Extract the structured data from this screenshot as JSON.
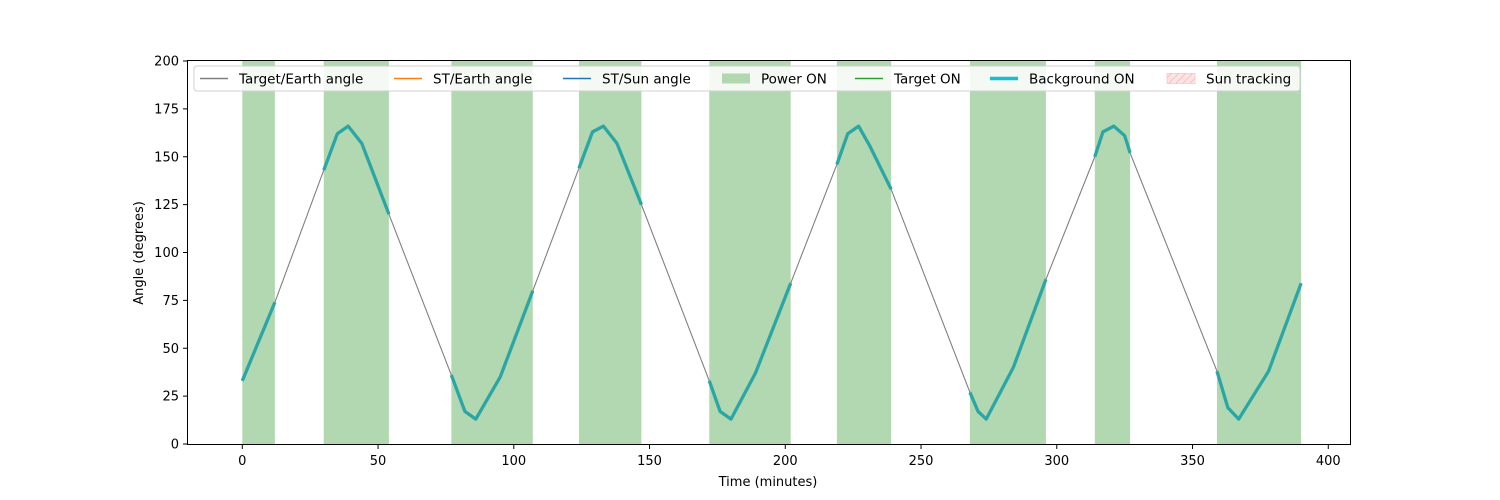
{
  "chart_data": {
    "type": "line",
    "title": "",
    "xlabel": "Time (minutes)",
    "ylabel": "Angle (degrees)",
    "xlim": [
      -20,
      408
    ],
    "ylim": [
      0,
      200
    ],
    "x_ticks": [
      0,
      50,
      100,
      150,
      200,
      250,
      300,
      350,
      400
    ],
    "y_ticks": [
      0,
      25,
      50,
      75,
      100,
      125,
      150,
      175,
      200
    ],
    "grid": false,
    "legend_position": "top",
    "legend": [
      {
        "label": "Target/Earth angle",
        "kind": "line",
        "color": "#808080"
      },
      {
        "label": "ST/Earth angle",
        "kind": "line",
        "color": "#ff7f0e"
      },
      {
        "label": "ST/Sun angle",
        "kind": "line",
        "color": "#1f77b4"
      },
      {
        "label": "Power ON",
        "kind": "patch",
        "color": "#b2d8b2"
      },
      {
        "label": "Target ON",
        "kind": "line",
        "color": "#2ca02c"
      },
      {
        "label": "Background ON",
        "kind": "thick-line",
        "color": "#17becf"
      },
      {
        "label": "Sun tracking",
        "kind": "hatch-patch",
        "color": "#ffcccc"
      }
    ],
    "power_on_intervals": [
      [
        0,
        12
      ],
      [
        30,
        54
      ],
      [
        77,
        107
      ],
      [
        124,
        147
      ],
      [
        172,
        202
      ],
      [
        219,
        239
      ],
      [
        268,
        296
      ],
      [
        314,
        327
      ],
      [
        359,
        390
      ]
    ],
    "series": [
      {
        "name": "Target/Earth angle",
        "color": "#808080",
        "x": [
          0,
          12,
          30,
          35,
          39,
          44,
          54,
          77,
          82,
          86,
          95,
          107,
          124,
          129,
          133,
          138,
          147,
          172,
          176,
          180,
          189,
          202,
          219,
          223,
          227,
          231,
          239,
          268,
          271,
          274,
          284,
          296,
          314,
          317,
          321,
          325,
          327,
          359,
          363,
          367,
          378,
          390
        ],
        "y": [
          33,
          74,
          143,
          162,
          166,
          157,
          120,
          36,
          17,
          13,
          35,
          80,
          144,
          163,
          166,
          157,
          125,
          33,
          17,
          13,
          37,
          84,
          146,
          162,
          166,
          156,
          133,
          27,
          17,
          13,
          40,
          86,
          150,
          163,
          166,
          161,
          152,
          38,
          19,
          13,
          38,
          84
        ]
      }
    ],
    "background_on_intervals": [
      [
        0,
        12
      ],
      [
        30,
        54
      ],
      [
        77,
        107
      ],
      [
        124,
        147
      ],
      [
        172,
        202
      ],
      [
        219,
        239
      ],
      [
        268,
        296
      ],
      [
        314,
        327
      ],
      [
        359,
        390
      ]
    ]
  },
  "styles": {
    "power_color": "#b2d8b2",
    "angle_line_color": "#808080",
    "background_line_color": "#2ca6a4"
  }
}
